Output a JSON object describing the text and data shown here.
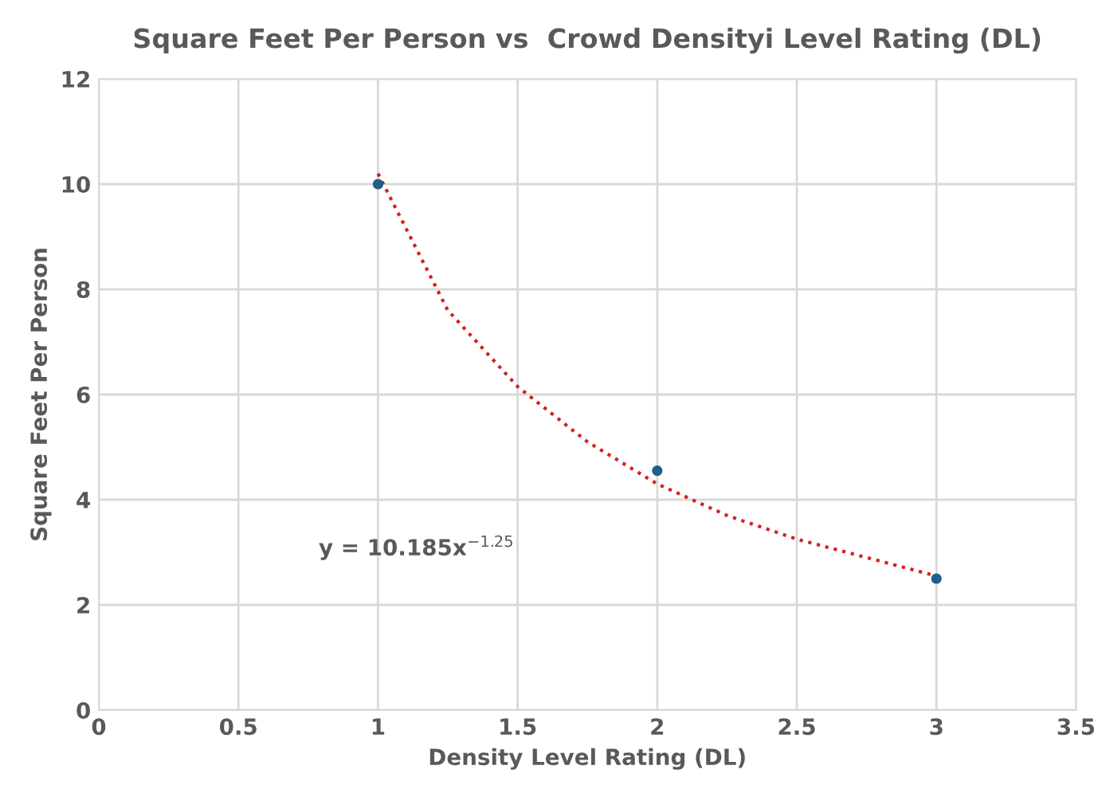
{
  "chart_data": {
    "type": "scatter",
    "title": "Square Feet Per Person vs  Crowd Densityi Level Rating (DL)",
    "xlabel": "Density Level Rating (DL)",
    "ylabel": "Square Feet Per Person",
    "series": [
      {
        "color": "#1f5f8b",
        "x": [
          1,
          2,
          3
        ],
        "values": [
          10.0,
          4.55,
          2.5
        ],
        "marker": "circle"
      },
      {
        "type": "line",
        "color": "#d62020",
        "line_style": "dotted",
        "x": [
          1,
          1.25,
          1.5,
          1.75,
          2,
          2.25,
          2.5,
          2.75,
          3
        ],
        "values": [
          10.2,
          7.6,
          6.15,
          5.1,
          4.3,
          3.7,
          3.25,
          2.9,
          2.55
        ]
      }
    ],
    "annotations": [
      "y = 10.185x$^{−1.25}$"
    ],
    "xlim": [
      0,
      3.5
    ],
    "xticks": [
      0,
      0.5,
      1,
      1.5,
      2,
      2.5,
      3,
      3.5
    ],
    "ylim": [
      0,
      12
    ],
    "yticks": [
      0,
      2,
      4,
      6,
      8,
      10,
      12
    ],
    "grid": true
  }
}
